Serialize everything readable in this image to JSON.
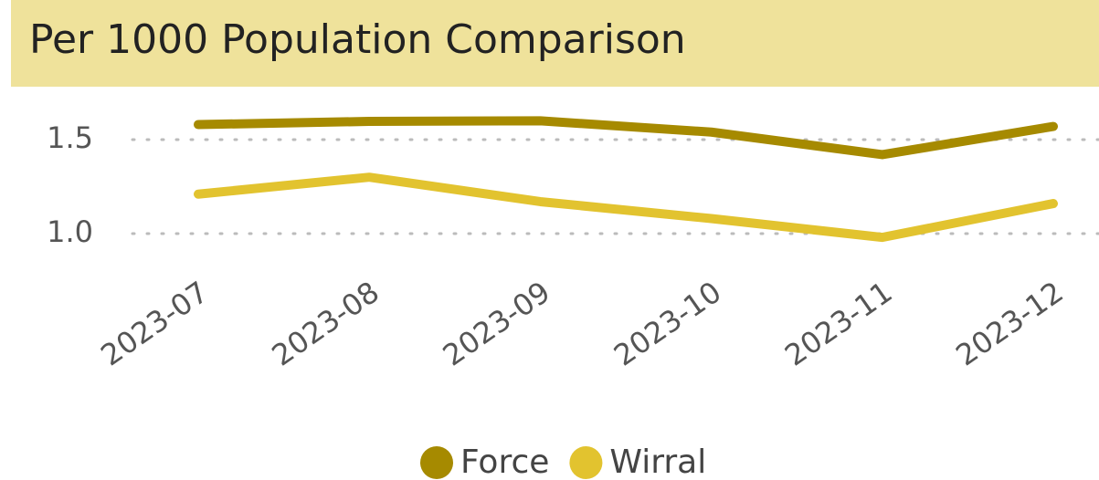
{
  "chart_data": {
    "type": "line",
    "title": "Per 1000 Population Comparison",
    "categories": [
      "2023-07",
      "2023-08",
      "2023-09",
      "2023-10",
      "2023-11",
      "2023-12"
    ],
    "series": [
      {
        "name": "Force",
        "color": "#a68a00",
        "values": [
          1.58,
          1.597,
          1.6,
          1.54,
          1.42,
          1.57
        ]
      },
      {
        "name": "Wirral",
        "color": "#e2c32f",
        "values": [
          1.21,
          1.3,
          1.17,
          1.08,
          0.98,
          1.16
        ]
      }
    ],
    "ylim": [
      0.9,
      1.7
    ],
    "yticks": [
      {
        "value": 1.0,
        "label": "1.0"
      },
      1.5
    ],
    "grid": true,
    "legend": "bottom"
  }
}
